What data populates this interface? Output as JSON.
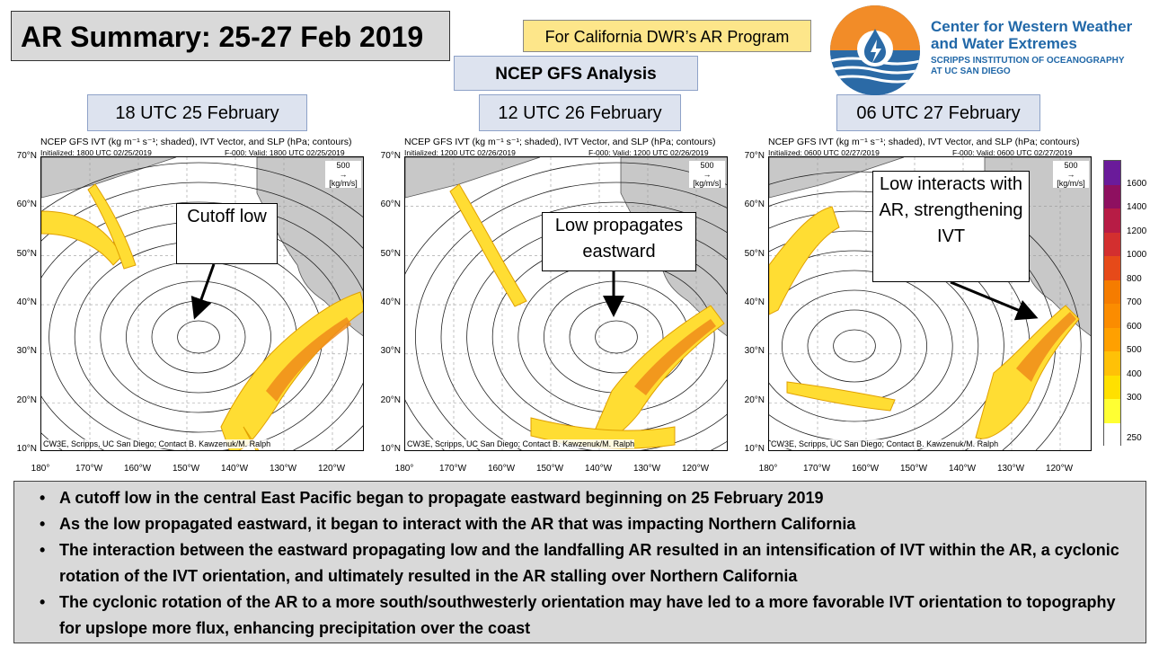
{
  "header": {
    "title": "AR Summary: 25-27 Feb 2019",
    "dwr_note": "For California DWR’s AR Program",
    "analysis": "NCEP GFS Analysis"
  },
  "logo": {
    "name_line1": "Center for Western Weather",
    "name_line2": "and Water Extremes",
    "sub_line1": "SCRIPPS INSTITUTION OF OCEANOGRAPHY",
    "sub_line2": "AT UC SAN DIEGO",
    "icon": "water-drop-icon"
  },
  "panels": [
    {
      "title": "18 UTC 25 February",
      "map_title": "NCEP GFS IVT (kg m⁻¹ s⁻¹; shaded), IVT Vector, and SLP (hPa; contours)",
      "initialized": "Initialized: 1800 UTC 02/25/2019",
      "valid": "F-000: Valid: 1800 UTC 02/25/2019",
      "callout": "Cutoff low"
    },
    {
      "title": "12 UTC 26 February",
      "map_title": "NCEP GFS IVT (kg m⁻¹ s⁻¹; shaded), IVT Vector, and SLP (hPa; contours)",
      "initialized": "Initialized: 1200 UTC 02/26/2019",
      "valid": "F-000: Valid: 1200 UTC 02/26/2019",
      "callout": "Low propagates eastward"
    },
    {
      "title": "06 UTC 27 February",
      "map_title": "NCEP GFS IVT (kg m⁻¹ s⁻¹; shaded), IVT Vector, and SLP (hPa; contours)",
      "initialized": "Initialized: 0600 UTC 02/27/2019",
      "valid": "F-000: Valid: 0600 UTC 02/27/2019",
      "callout": "Low interacts with AR, strengthening IVT"
    }
  ],
  "map_common": {
    "lat_labels": [
      "70°N",
      "60°N",
      "50°N",
      "40°N",
      "30°N",
      "20°N",
      "10°N"
    ],
    "lon_labels": [
      "180°",
      "170°W",
      "160°W",
      "150°W",
      "140°W",
      "130°W",
      "120°W"
    ],
    "ref_vector_value": "500",
    "ref_vector_unit": "[kg/m/s]",
    "credit": "CW3E, Scripps, UC San Diego; Contact B. Kawzenuk/M. Ralph"
  },
  "colorbar": {
    "labels": [
      "1600",
      "1400",
      "1200",
      "1000",
      "800",
      "700",
      "600",
      "500",
      "400",
      "300",
      "250"
    ],
    "colors": [
      "#6a1b9a",
      "#8e1060",
      "#b71c45",
      "#d32f2f",
      "#e64a19",
      "#f57c00",
      "#fb8c00",
      "#ffa000",
      "#ffc107",
      "#ffe000",
      "#ffff33",
      "#ffffff"
    ]
  },
  "bullets": [
    "A cutoff low in the central East Pacific began to propagate eastward beginning on 25 February 2019",
    "As the low propagated eastward, it began to interact with the AR that was impacting Northern California",
    "The interaction between the eastward propagating low and the landfalling AR resulted in an intensification of IVT within the AR, a cyclonic rotation of the IVT orientation, and ultimately resulted in the AR stalling over Northern California",
    "The cyclonic rotation of the AR to a more south/southwesterly orientation may have led to a more favorable IVT orientation to topography for upslope more flux, enhancing precipitation over the coast"
  ]
}
